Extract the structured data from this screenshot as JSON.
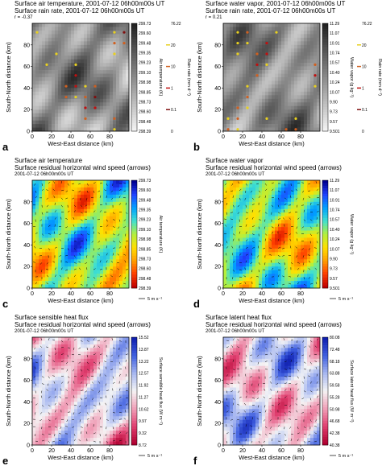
{
  "chart_data": [
    {
      "type": "heatmap",
      "panel": "a",
      "title": "Surface air temperature, 2001-07-12 06h00m00s UT",
      "subtitle": "Surface rain rate, 2001-07-12 06h00m00s UT",
      "note": "r = -0.37",
      "xlabel": "West-East distance (km)",
      "ylabel": "South-North distance (km)",
      "x_ticks": [
        "0",
        "20",
        "40",
        "60",
        "80"
      ],
      "y_ticks": [
        "0",
        "20",
        "40",
        "60",
        "80"
      ],
      "xlim": [
        0,
        100
      ],
      "ylim": [
        0,
        100
      ],
      "colorbar_label": "Air temperature (K)",
      "colorbar_ticks": [
        "299.73",
        "299.60",
        "299.48",
        "299.35",
        "299.23",
        "299.10",
        "298.98",
        "298.85",
        "298.73",
        "298.60",
        "298.48",
        "298.39"
      ],
      "colormap": [
        "#f2f2f2",
        "#222222"
      ],
      "overlay_label": "Rain rate (mm d⁻¹)",
      "overlay_ticks": [
        "76.22",
        "20",
        "10",
        "1",
        "0.1",
        "0"
      ],
      "overlay_colors": [
        "#e8d020",
        "#d06020",
        "#c01010",
        "#801010"
      ]
    },
    {
      "type": "heatmap",
      "panel": "b",
      "title": "Surface water vapor, 2001-07-12 06h00m00s UT",
      "subtitle": "Surface rain rate, 2001-07-12 06h00m00s UT",
      "note": "r = 0.21",
      "xlabel": "West-East distance (km)",
      "ylabel": "South-North distance (km)",
      "x_ticks": [
        "0",
        "20",
        "40",
        "60",
        "80"
      ],
      "y_ticks": [
        "0",
        "20",
        "40",
        "60",
        "80"
      ],
      "xlim": [
        0,
        100
      ],
      "ylim": [
        0,
        100
      ],
      "colorbar_label": "Water vapor (g kg⁻¹)",
      "colorbar_ticks": [
        "11.29",
        "11.07",
        "10.91",
        "10.74",
        "10.57",
        "10.40",
        "10.24",
        "10.07",
        "9.90",
        "9.73",
        "9.57",
        "9.501"
      ],
      "colormap": [
        "#f2f2f2",
        "#222222"
      ],
      "overlay_label": "Rain rate (mm d⁻¹)",
      "overlay_ticks": [
        "76.22",
        "20",
        "10",
        "1",
        "0.1",
        "0"
      ],
      "overlay_colors": [
        "#e8d020",
        "#d06020",
        "#c01010",
        "#801010"
      ]
    },
    {
      "type": "heatmap",
      "panel": "c",
      "title": "Surface air temperature",
      "subtitle": "Surface residual horizontal wind speed (arrows)",
      "note": "2001-07-12 06h00m00s UT",
      "xlabel": "West-East distance (km)",
      "ylabel": "South-North distance (km)",
      "x_ticks": [
        "0",
        "20",
        "40",
        "60",
        "80"
      ],
      "y_ticks": [
        "0",
        "20",
        "40",
        "60",
        "80"
      ],
      "xlim": [
        0,
        100
      ],
      "ylim": [
        0,
        100
      ],
      "colorbar_label": "Air temperature (K)",
      "colorbar_ticks": [
        "299.73",
        "299.60",
        "299.48",
        "299.35",
        "299.23",
        "299.10",
        "298.98",
        "298.85",
        "298.73",
        "298.60",
        "298.48",
        "298.39"
      ],
      "colormap": [
        "#c00000",
        "#ff4000",
        "#ffa000",
        "#ffe000",
        "#b0f040",
        "#40e0d0",
        "#00a0ff",
        "#2040ff",
        "#000090"
      ],
      "arrow_scale": "5 m s⁻¹"
    },
    {
      "type": "heatmap",
      "panel": "d",
      "title": "Surface water vapor",
      "subtitle": "Surface residual horizontal wind speed (arrows)",
      "note": "2001-07-12 06h00m00s UT",
      "xlabel": "West-East distance (km)",
      "ylabel": "South-North distance (km)",
      "x_ticks": [
        "0",
        "20",
        "40",
        "60",
        "80"
      ],
      "y_ticks": [
        "0",
        "20",
        "40",
        "60",
        "80"
      ],
      "xlim": [
        0,
        100
      ],
      "ylim": [
        0,
        100
      ],
      "colorbar_label": "Water vapor (g kg⁻¹)",
      "colorbar_ticks": [
        "11.29",
        "11.07",
        "10.91",
        "10.74",
        "10.57",
        "10.40",
        "10.24",
        "10.07",
        "9.90",
        "9.73",
        "9.57",
        "9.501"
      ],
      "colormap": [
        "#c00000",
        "#ff4000",
        "#ffa000",
        "#ffe000",
        "#b0f040",
        "#40e0d0",
        "#00a0ff",
        "#2040ff",
        "#000090"
      ],
      "arrow_scale": "5 m s⁻¹"
    },
    {
      "type": "heatmap",
      "panel": "e",
      "title": "Surface sensible heat flux",
      "subtitle": "Surface residual horizontal wind speed (arrows)",
      "note": "2001-07-12 06h00m00s UT",
      "xlabel": "West-East distance (km)",
      "ylabel": "South-North distance (km)",
      "x_ticks": [
        "0",
        "20",
        "40",
        "60",
        "80"
      ],
      "y_ticks": [
        "0",
        "20",
        "40",
        "60",
        "80"
      ],
      "xlim": [
        0,
        100
      ],
      "ylim": [
        0,
        100
      ],
      "colorbar_label": "Surface sensible heat flux (W m⁻²)",
      "colorbar_ticks": [
        "15.52",
        "13.87",
        "13.22",
        "12.57",
        "11.92",
        "11.27",
        "10.62",
        "9.97",
        "9.32",
        "8.72"
      ],
      "colormap": [
        "#b00030",
        "#e04070",
        "#f0a0b8",
        "#f5f5f5",
        "#a8b8f0",
        "#4060e0",
        "#1020b0"
      ],
      "arrow_scale": "5 m s⁻¹"
    },
    {
      "type": "heatmap",
      "panel": "f",
      "title": "Surface latent heat flux",
      "subtitle": "Surface residual horizontal wind speed (arrows)",
      "note": "2001-07-12 06h00m00s UT",
      "xlabel": "West-East distance (km)",
      "ylabel": "South-North distance (km)",
      "x_ticks": [
        "0",
        "20",
        "40",
        "60",
        "80"
      ],
      "y_ticks": [
        "0",
        "20",
        "40",
        "60",
        "80"
      ],
      "xlim": [
        0,
        100
      ],
      "ylim": [
        0,
        100
      ],
      "colorbar_label": "Surface latent heat flux (W m⁻²)",
      "colorbar_ticks": [
        "80.08",
        "72.48",
        "68.18",
        "63.88",
        "59.58",
        "55.28",
        "50.98",
        "46.68",
        "42.38",
        "40.38"
      ],
      "colormap": [
        "#b00030",
        "#e04070",
        "#f0a0b8",
        "#f5f5f5",
        "#a8b8f0",
        "#4060e0",
        "#1020b0"
      ],
      "arrow_scale": "5 m s⁻¹"
    }
  ]
}
